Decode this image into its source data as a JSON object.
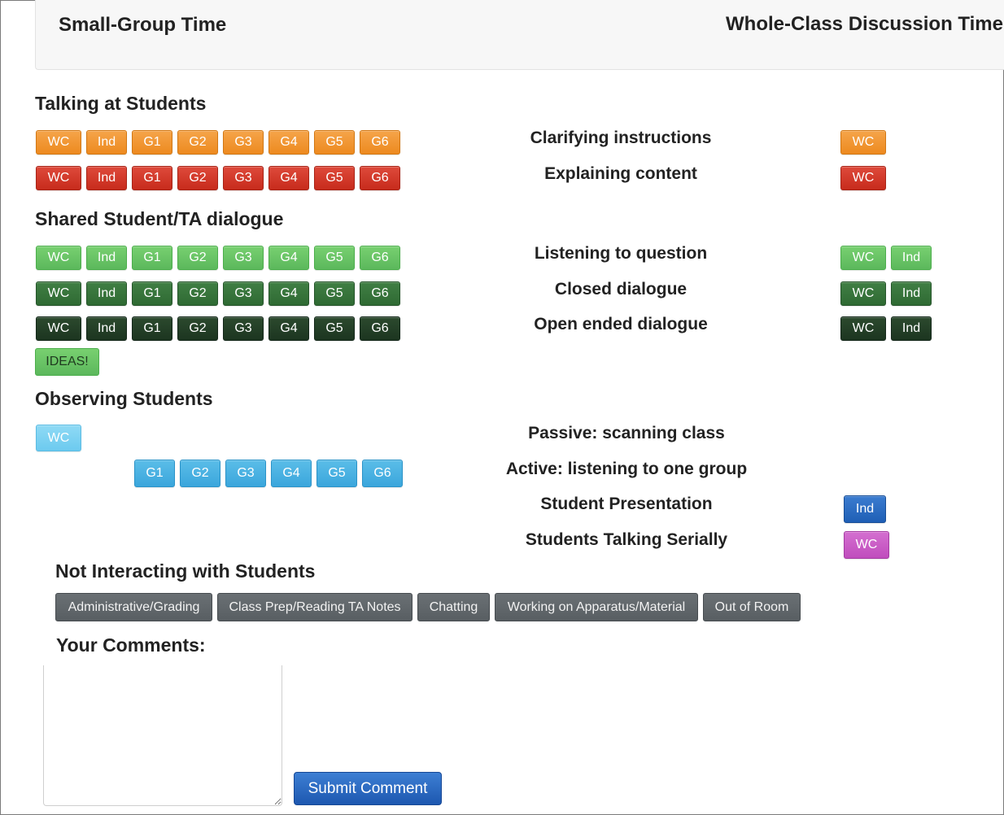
{
  "header": {
    "small_group_title": "Small-Group Time",
    "whole_class_title": "Whole-Class Discussion Time"
  },
  "sections": {
    "talking": "Talking at Students",
    "shared": "Shared Student/TA dialogue",
    "observing": "Observing Students",
    "not_interacting": "Not Interacting with Students",
    "comments": "Your Comments:"
  },
  "group_buttons": [
    "WC",
    "Ind",
    "G1",
    "G2",
    "G3",
    "G4",
    "G5",
    "G6"
  ],
  "observing_groups": [
    "G1",
    "G2",
    "G3",
    "G4",
    "G5",
    "G6"
  ],
  "labels": {
    "wc": "WC",
    "ind": "Ind",
    "ideas": "IDEAS!"
  },
  "activities": {
    "clarifying": "Clarifying instructions",
    "explaining": "Explaining content",
    "listening_question": "Listening to question",
    "closed_dialogue": "Closed dialogue",
    "open_dialogue": "Open ended dialogue",
    "passive": "Passive: scanning class",
    "active": "Active: listening to one group",
    "presentation": "Student Presentation",
    "serially": "Students Talking Serially"
  },
  "not_interacting_buttons": [
    "Administrative/Grading",
    "Class Prep/Reading TA Notes",
    "Chatting",
    "Working on Apparatus/Material",
    "Out of Room"
  ],
  "comment_input": {
    "value": "",
    "placeholder": ""
  },
  "submit_label": "Submit Comment",
  "colors": {
    "orange": "#ed8a1f",
    "red": "#c72b1c",
    "light_green": "#5cb85c",
    "medium_green": "#2f6a33",
    "dark_green": "#1c3520",
    "light_blue": "#6ccaef",
    "cyan": "#3ba6dc",
    "blue": "#1f5fb5",
    "magenta": "#c04dbd",
    "gray": "#585e62"
  }
}
